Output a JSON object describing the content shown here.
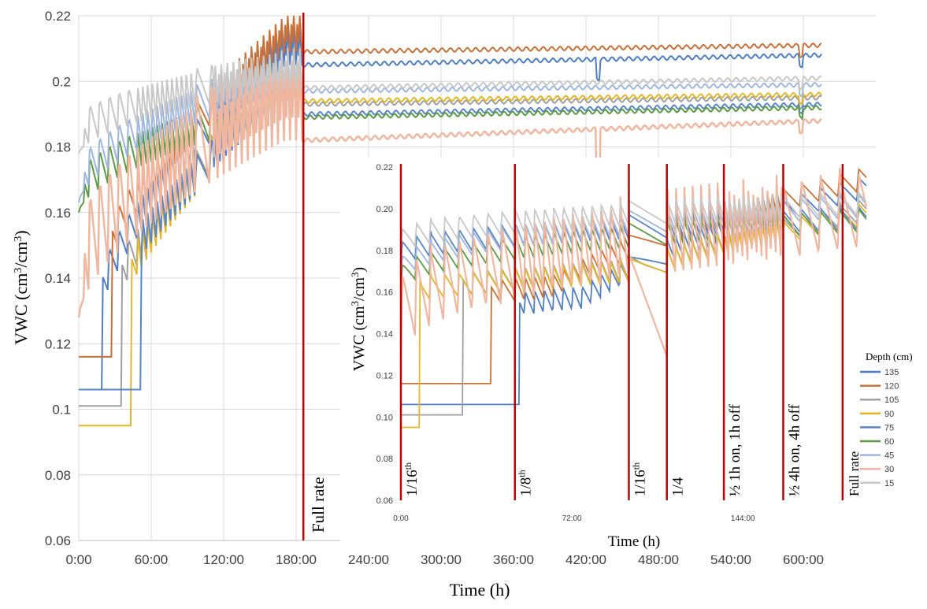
{
  "chart_data": [
    {
      "type": "line",
      "title": "",
      "xlabel": "Time (h)",
      "ylabel_main": "VWC (cm",
      "ylabel_sup1": "3",
      "ylabel_mid": "/cm",
      "ylabel_sup2": "3",
      "ylabel_end": ")",
      "xlim": [
        0,
        660
      ],
      "ylim": [
        0.06,
        0.22
      ],
      "x_ticks": [
        {
          "v": 0,
          "label": "0:00"
        },
        {
          "v": 60,
          "label": "60:00"
        },
        {
          "v": 120,
          "label": "120:00"
        },
        {
          "v": 180,
          "label": "180:00"
        },
        {
          "v": 240,
          "label": "240:00"
        },
        {
          "v": 300,
          "label": "300:00"
        },
        {
          "v": 360,
          "label": "360:00"
        },
        {
          "v": 420,
          "label": "420:00"
        },
        {
          "v": 480,
          "label": "480:00"
        },
        {
          "v": 540,
          "label": "540:00"
        },
        {
          "v": 600,
          "label": "600:00"
        }
      ],
      "y_ticks": [
        {
          "v": 0.06,
          "label": "0.06"
        },
        {
          "v": 0.08,
          "label": "0.08"
        },
        {
          "v": 0.1,
          "label": "0.1"
        },
        {
          "v": 0.12,
          "label": "0.12"
        },
        {
          "v": 0.14,
          "label": "0.14"
        },
        {
          "v": 0.16,
          "label": "0.16"
        },
        {
          "v": 0.18,
          "label": "0.18"
        },
        {
          "v": 0.2,
          "label": "0.2"
        },
        {
          "v": 0.22,
          "label": "0.22"
        }
      ],
      "grid": true,
      "markers": [
        {
          "x": 186,
          "label": "Full rate"
        }
      ],
      "series": [
        {
          "depth": "135",
          "color": "#4f7ec4",
          "start": 0.106,
          "mid": 0.205,
          "end": 0.208,
          "dip": true
        },
        {
          "depth": "120",
          "color": "#c9713a",
          "start": 0.116,
          "mid": 0.209,
          "end": 0.211,
          "dip": false
        },
        {
          "depth": "105",
          "color": "#a0a0a0",
          "start": 0.101,
          "mid": 0.193,
          "end": 0.195,
          "dip": false
        },
        {
          "depth": "90",
          "color": "#e3b72a",
          "start": 0.095,
          "mid": 0.194,
          "end": 0.196,
          "dip": false
        },
        {
          "depth": "75",
          "color": "#5a86c8",
          "start": 0.106,
          "mid": 0.19,
          "end": 0.193,
          "dip": false
        },
        {
          "depth": "60",
          "color": "#5c9a45",
          "start": 0.16,
          "mid": 0.189,
          "end": 0.192,
          "dip": false
        },
        {
          "depth": "45",
          "color": "#9fb6dd",
          "start": 0.163,
          "mid": 0.197,
          "end": 0.199,
          "dip": false
        },
        {
          "depth": "30",
          "color": "#f0b7a0",
          "start": 0.128,
          "mid": 0.182,
          "end": 0.188,
          "dip": true
        },
        {
          "depth": "15",
          "color": "#c8c8c8",
          "start": 0.178,
          "mid": 0.198,
          "end": 0.201,
          "dip": false
        }
      ]
    },
    {
      "type": "line",
      "title": "",
      "xlabel": "Time (h)",
      "ylabel_main": "VWC (cm",
      "ylabel_sup1": "3",
      "ylabel_mid": "/cm",
      "ylabel_sup2": "3",
      "ylabel_end": ")",
      "xlim": [
        0,
        196
      ],
      "ylim": [
        0.06,
        0.22
      ],
      "x_ticks": [
        {
          "v": 0,
          "label": "0:00"
        },
        {
          "v": 72,
          "label": "72:00"
        },
        {
          "v": 144,
          "label": "144:00"
        }
      ],
      "y_ticks": [
        {
          "v": 0.06,
          "label": "0.06"
        },
        {
          "v": 0.08,
          "label": "0.08"
        },
        {
          "v": 0.1,
          "label": "0.10"
        },
        {
          "v": 0.12,
          "label": "0.12"
        },
        {
          "v": 0.14,
          "label": "0.14"
        },
        {
          "v": 0.16,
          "label": "0.16"
        },
        {
          "v": 0.18,
          "label": "0.18"
        },
        {
          "v": 0.2,
          "label": "0.20"
        },
        {
          "v": 0.22,
          "label": "0.22"
        }
      ],
      "grid": false,
      "phases": [
        {
          "x": 0,
          "label": "1/16",
          "sup": "th"
        },
        {
          "x": 48,
          "label": "1/8",
          "sup": "th"
        },
        {
          "x": 96,
          "label": "1/16",
          "sup": "th"
        },
        {
          "x": 112,
          "label": "1/4",
          "sup": ""
        },
        {
          "x": 136,
          "label": "½ 1h on, 1h off",
          "sup": ""
        },
        {
          "x": 161,
          "label": "½ 4h on, 4h off",
          "sup": ""
        },
        {
          "x": 186,
          "label": "Full rate",
          "sup": ""
        }
      ],
      "legend_title": "Depth (cm)",
      "legend_placement": "right",
      "series": [
        {
          "name": "135",
          "color": "#4f7ec4",
          "start": 0.106,
          "step_at": 50,
          "mid": 0.162,
          "end": 0.205
        },
        {
          "name": "120",
          "color": "#c9713a",
          "start": 0.116,
          "step_at": 38,
          "mid": 0.168,
          "end": 0.209
        },
        {
          "name": "105",
          "color": "#a0a0a0",
          "start": 0.101,
          "step_at": 26,
          "mid": 0.172,
          "end": 0.194
        },
        {
          "name": "90",
          "color": "#e3b72a",
          "start": 0.095,
          "step_at": 8,
          "mid": 0.17,
          "end": 0.192
        },
        {
          "name": "75",
          "color": "#5a86c8",
          "start": 0.172,
          "step_at": 0,
          "mid": 0.185,
          "end": 0.19
        },
        {
          "name": "60",
          "color": "#5c9a45",
          "start": 0.16,
          "step_at": 0,
          "mid": 0.178,
          "end": 0.189
        },
        {
          "name": "45",
          "color": "#9fb6dd",
          "start": 0.164,
          "step_at": 0,
          "mid": 0.18,
          "end": 0.196
        },
        {
          "name": "30",
          "color": "#f0b7a0",
          "start": 0.128,
          "step_at": 0,
          "mid": 0.14,
          "end": 0.181
        },
        {
          "name": "15",
          "color": "#c8c8c8",
          "start": 0.178,
          "step_at": 0,
          "mid": 0.182,
          "end": 0.197
        }
      ]
    }
  ]
}
